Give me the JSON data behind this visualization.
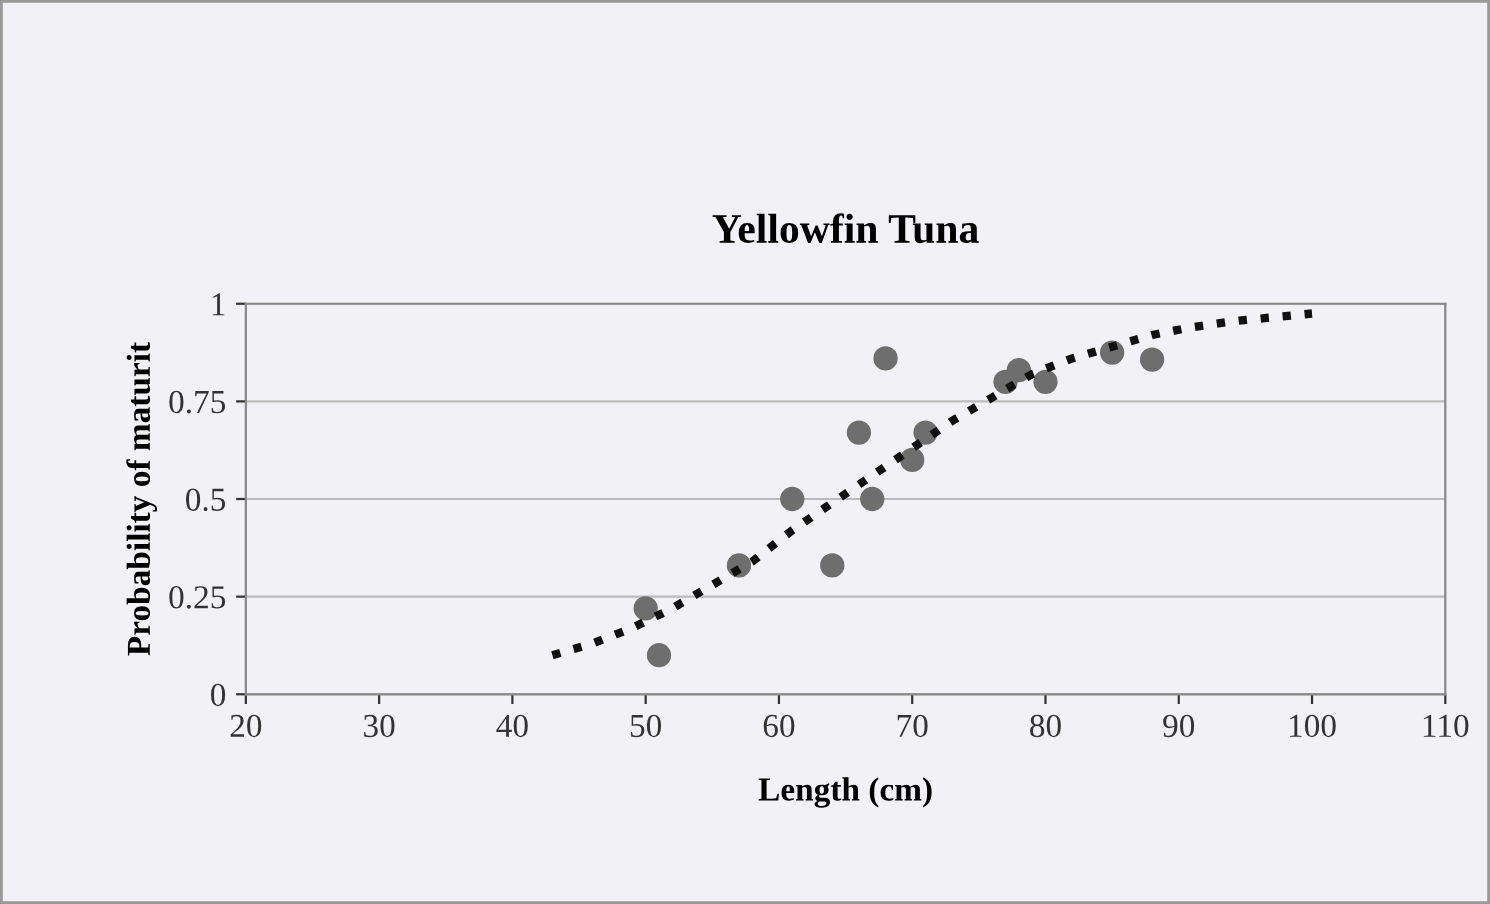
{
  "chart_data": {
    "type": "scatter",
    "title": "Yellowfin Tuna",
    "xlabel": "Length (cm)",
    "ylabel": "Probability of maturit",
    "xlim": [
      20,
      110
    ],
    "xticks": [
      20,
      30,
      40,
      50,
      60,
      70,
      80,
      90,
      100,
      110
    ],
    "ylim": [
      0,
      1
    ],
    "yticks": [
      0,
      0.25,
      0.5,
      0.75,
      1
    ],
    "grid": "y",
    "series": [
      {
        "color": "#6e6e6e",
        "marker": "circle",
        "x": [
          50,
          51,
          57,
          61,
          64,
          66,
          67,
          68,
          70,
          71,
          77,
          78,
          80,
          85,
          88
        ],
        "values": [
          0.22,
          0.1,
          0.33,
          0.5,
          0.33,
          0.67,
          0.5,
          0.86,
          0.6,
          0.67,
          0.8,
          0.83,
          0.8,
          0.875,
          0.857
        ]
      },
      {
        "type": "line",
        "color": "#111111",
        "line_style": "dotted",
        "marker": "none",
        "x": [
          43,
          46,
          49,
          52,
          55,
          58,
          61,
          64,
          67,
          70,
          73,
          76,
          79,
          82,
          85,
          88,
          91,
          94,
          97,
          100
        ],
        "values": [
          0.1,
          0.13,
          0.17,
          0.22,
          0.28,
          0.34,
          0.42,
          0.49,
          0.56,
          0.63,
          0.7,
          0.76,
          0.82,
          0.86,
          0.89,
          0.92,
          0.94,
          0.955,
          0.965,
          0.975
        ]
      }
    ]
  }
}
